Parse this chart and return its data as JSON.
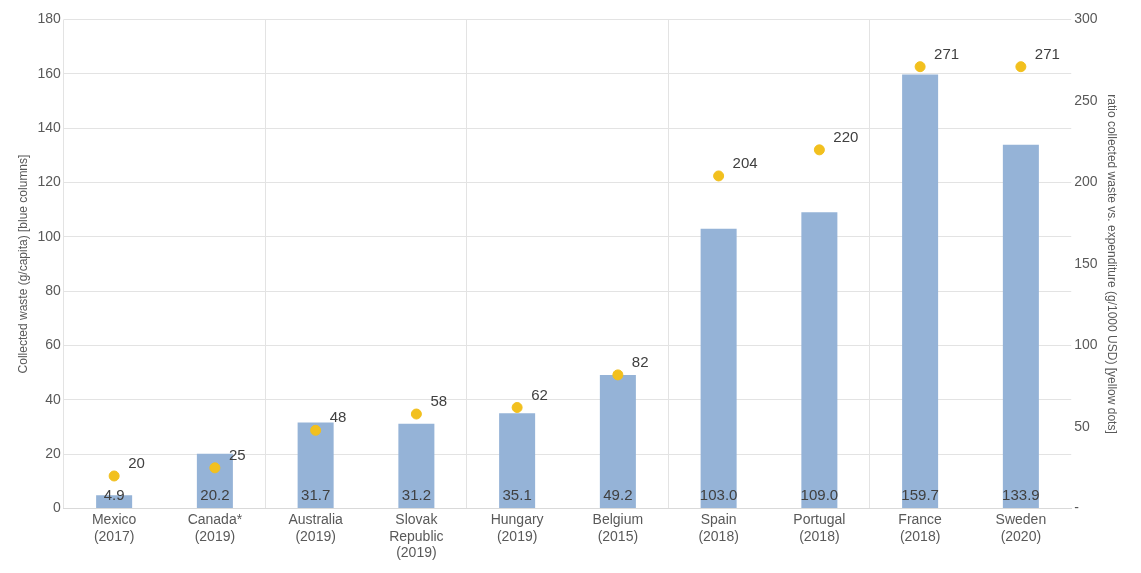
{
  "chart_data": {
    "type": "bar",
    "ylabel": "Collected waste (g/capita) [blue columns]",
    "y2label": "ratio collected waste vs. expenditure (g/1000 USD) [yellow dots]",
    "categories": [
      "Mexico\n(2017)",
      "Canada*\n(2019)",
      "Australia\n(2019)",
      "Slovak\nRepublic\n(2019)",
      "Hungary\n(2019)",
      "Belgium\n(2015)",
      "Spain\n(2018)",
      "Portugal\n(2018)",
      "France\n(2018)",
      "Sweden\n(2020)"
    ],
    "series": [
      {
        "color": "#95b3d7",
        "values": [
          4.9,
          20.2,
          31.7,
          31.2,
          35.1,
          49.2,
          103.0,
          109.0,
          159.7,
          133.9
        ],
        "value_labels": [
          "4.9",
          "20.2",
          "31.7",
          "31.2",
          "35.1",
          "49.2",
          "103.0",
          "109.0",
          "159.7",
          "133.9"
        ]
      },
      {
        "type": "scatter",
        "axis": "y2",
        "color": "#f2c01e",
        "marker": "circle",
        "values": [
          20,
          25,
          48,
          58,
          62,
          82,
          204,
          220,
          271,
          271
        ],
        "value_labels": [
          "20",
          "25",
          "48",
          "58",
          "62",
          "82",
          "204",
          "220",
          "271",
          "271"
        ]
      }
    ],
    "ylim": [
      0,
      180
    ],
    "yticks": [
      0,
      20,
      40,
      60,
      80,
      100,
      120,
      140,
      160,
      180
    ],
    "y2lim": [
      0,
      300
    ],
    "y2ticks": [
      {
        "value": 0,
        "label": "-"
      },
      50,
      100,
      150,
      200,
      250,
      300
    ],
    "grid": true,
    "legend": false
  }
}
